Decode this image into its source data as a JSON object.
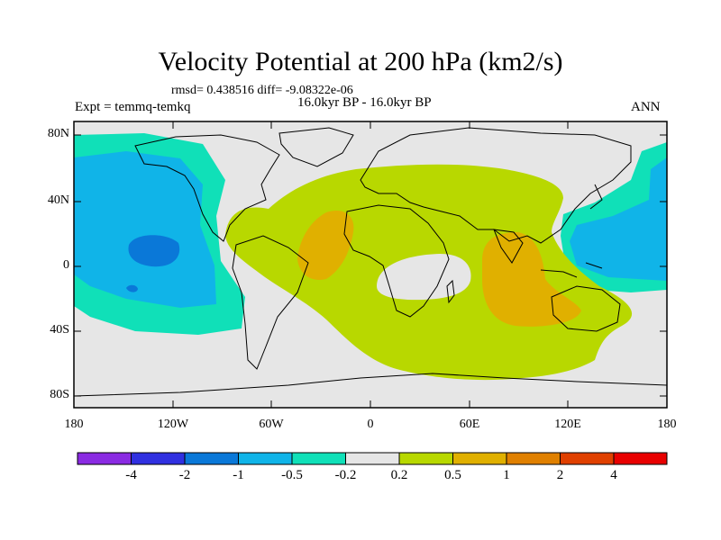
{
  "title": "Velocity Potential at 200 hPa (km2/s)",
  "rmsd_line": "rmsd= 0.438516 diff= -9.08322e-06",
  "subtitle": "16.0kyr BP - 16.0kyr BP",
  "expt": "Expt = temmq-temkq",
  "season": "ANN",
  "lat_labels": [
    "80N",
    "40N",
    "0",
    "40S",
    "80S"
  ],
  "lon_labels": [
    "180",
    "120W",
    "60W",
    "0",
    "60E",
    "120E",
    "180"
  ],
  "colorbar": {
    "colors": [
      "#8a2be2",
      "#3030e0",
      "#0a78d8",
      "#10b4e8",
      "#10e0b8",
      "#e6e6e6",
      "#b8d800",
      "#e0b000",
      "#e08000",
      "#e04000",
      "#e80000"
    ],
    "labels": [
      "-4",
      "-2",
      "-1",
      "-0.5",
      "-0.2",
      "0.2",
      "0.5",
      "1",
      "2",
      "4"
    ]
  },
  "fill_colors": {
    "background": "#e6e6e6",
    "neg_weak": "#10e0b8",
    "neg_mid": "#10b4e8",
    "neg_strong": "#0a78d8",
    "pos_weak": "#b8d800",
    "pos_mid": "#e0b000"
  }
}
